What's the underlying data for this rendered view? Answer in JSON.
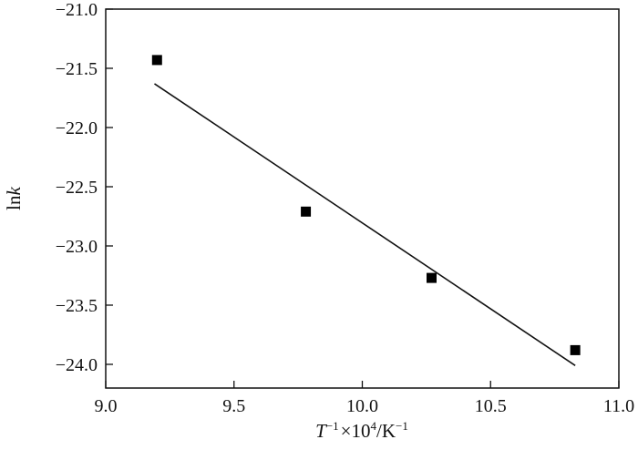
{
  "chart_data": {
    "type": "scatter",
    "xlabel": {
      "symbol": "T",
      "exp1": "−1",
      "mid": "×10",
      "exp2": "4",
      "unit": "/K",
      "exp3": "−1"
    },
    "ylabel": {
      "pre": "ln",
      "symbol": "k"
    },
    "xlim": [
      9.0,
      11.0
    ],
    "ylim": [
      -24.2,
      -21.0
    ],
    "x_ticks": [
      9.0,
      9.5,
      10.0,
      10.5,
      11.0
    ],
    "x_tick_labels": [
      "9.0",
      "9.5",
      "10.0",
      "10.5",
      "11.0"
    ],
    "y_ticks": [
      -21.0,
      -21.5,
      -22.0,
      -22.5,
      -23.0,
      -23.5,
      -24.0
    ],
    "y_tick_labels": [
      "−21.0",
      "−21.5",
      "−22.0",
      "−22.5",
      "−23.0",
      "−23.5",
      "−24.0"
    ],
    "grid": false,
    "marker": "square",
    "color": "#000000",
    "points": [
      {
        "x": 9.2,
        "y": -21.43
      },
      {
        "x": 9.78,
        "y": -22.71
      },
      {
        "x": 10.27,
        "y": -23.27
      },
      {
        "x": 10.83,
        "y": -23.88
      }
    ],
    "fit_line": {
      "x": [
        9.19,
        10.83
      ],
      "y": [
        -21.63,
        -24.01
      ]
    }
  }
}
